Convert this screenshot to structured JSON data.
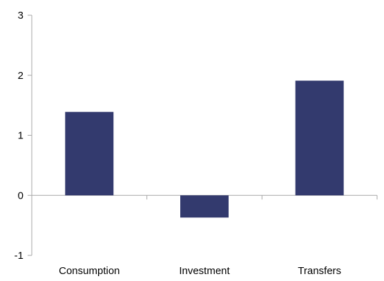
{
  "chart_data": {
    "type": "bar",
    "title": "",
    "xlabel": "",
    "ylabel": "",
    "categories": [
      "Consumption",
      "Investment",
      "Transfers"
    ],
    "values": [
      1.39,
      -0.37,
      1.91
    ],
    "ylim": [
      -1,
      3
    ],
    "yticks": [
      "-1",
      "0",
      "1",
      "2",
      "3"
    ],
    "grid": false,
    "legend": "none",
    "bar_color": "#333a6e",
    "axis_color": "#a6a6a6"
  }
}
